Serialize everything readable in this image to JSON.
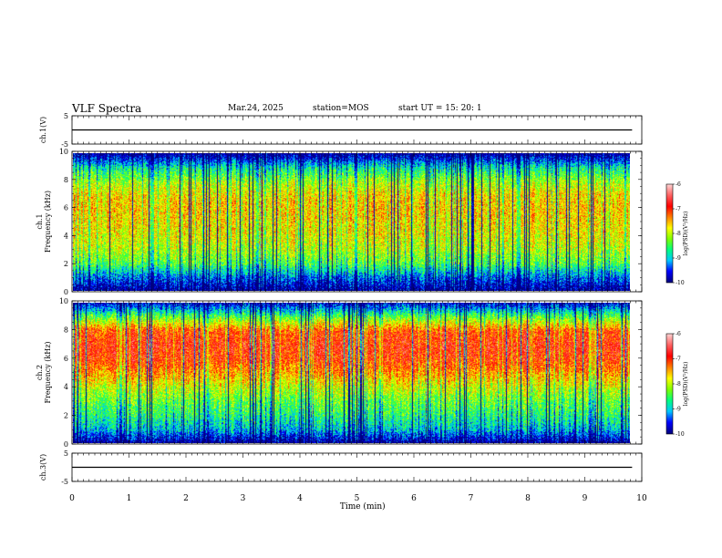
{
  "header": {
    "title": "VLF Spectra",
    "date": "Mar.24, 2025",
    "station": "station=MOS",
    "start": "start  UT =   15: 20: 1"
  },
  "colors": {
    "spectrogram_scale": [
      "#000080",
      "#0000ff",
      "#00c8ff",
      "#00ff80",
      "#80ff00",
      "#ffff00",
      "#ff8000",
      "#ff0000",
      "#ff6060",
      "#ffd0d0"
    ],
    "trace": "#000000"
  },
  "chart_data": [
    {
      "type": "line",
      "panel": "ch1-waveform",
      "ylabel": "ch.1(V)",
      "ylim": [
        -5,
        5
      ],
      "yticks": [
        "5",
        "-5"
      ],
      "x": [
        0,
        9.83
      ],
      "values": [
        0,
        0
      ]
    },
    {
      "type": "heatmap",
      "panel": "ch1-spectrogram",
      "ylabel": "ch.1\nFrequency (kHz)",
      "ylim": [
        0,
        10
      ],
      "yticks": [
        "0",
        "2",
        "4",
        "6",
        "8",
        "10"
      ],
      "xlim": [
        0,
        9.83
      ],
      "colorbar": {
        "label": "log(PSD)(V²/Hz)",
        "range": [
          -10,
          -6
        ],
        "ticks": [
          "-6",
          "-7",
          "-8",
          "-9",
          "-10"
        ]
      },
      "band_profile_khz": [
        0,
        1,
        2,
        3,
        4,
        5,
        6,
        7,
        8,
        9,
        10
      ],
      "band_profile_level": [
        -10,
        -9.3,
        -8.4,
        -8.0,
        -7.8,
        -7.7,
        -7.6,
        -7.7,
        -8.1,
        -8.8,
        -10
      ]
    },
    {
      "type": "heatmap",
      "panel": "ch2-spectrogram",
      "ylabel": "ch.2\nFrequency (kHz)",
      "ylim": [
        0,
        10
      ],
      "yticks": [
        "0",
        "2",
        "4",
        "6",
        "8",
        "10"
      ],
      "xlim": [
        0,
        9.83
      ],
      "colorbar": {
        "label": "log(PSD)(V²/Hz)",
        "range": [
          -10,
          -6
        ],
        "ticks": [
          "-6",
          "-7",
          "-8",
          "-9",
          "-10"
        ]
      },
      "band_profile_khz": [
        0,
        1,
        2,
        3,
        4,
        5,
        6,
        7,
        8,
        9,
        10
      ],
      "band_profile_level": [
        -10,
        -9.0,
        -8.6,
        -8.3,
        -7.9,
        -7.4,
        -7.0,
        -6.9,
        -7.1,
        -8.3,
        -9.7
      ]
    },
    {
      "type": "line",
      "panel": "ch3-waveform",
      "ylabel": "ch.3(V)",
      "ylim": [
        -5,
        5
      ],
      "yticks": [
        "5",
        "-5"
      ],
      "x": [
        0,
        9.83
      ],
      "values": [
        0,
        0
      ]
    }
  ],
  "x_axis": {
    "label": "Time  (min)",
    "range": [
      0,
      10
    ],
    "ticks": [
      "0",
      "1",
      "2",
      "3",
      "4",
      "5",
      "6",
      "7",
      "8",
      "9",
      "10"
    ]
  }
}
